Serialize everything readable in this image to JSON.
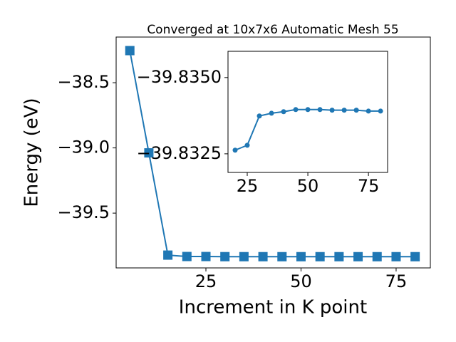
{
  "chart_data": [
    {
      "type": "line",
      "title": "Converged at 10x7x6 Automatic Mesh 55",
      "xlabel": "Increment in K point",
      "ylabel": "Energy (eV)",
      "x": [
        5,
        10,
        15,
        20,
        25,
        30,
        35,
        40,
        45,
        50,
        55,
        60,
        65,
        70,
        75,
        80
      ],
      "series": [
        {
          "color": "#1f77b4",
          "marker": "square",
          "values": [
            -38.254,
            -39.038,
            -39.822,
            -39.83262,
            -39.83278,
            -39.83374,
            -39.83383,
            -39.83388,
            -39.83395,
            -39.83395,
            -39.83395,
            -39.83393,
            -39.83393,
            -39.83393,
            -39.8339,
            -39.8339
          ]
        }
      ],
      "xlim": [
        1.4,
        84
      ],
      "ylim": [
        -39.92,
        -38.15
      ],
      "xticks": [
        25,
        50,
        75
      ],
      "yticks": [
        {
          "value": -38.5,
          "label": "−38.5"
        },
        {
          "value": -39.0,
          "label": "−39.0"
        },
        {
          "value": -39.5,
          "label": "−39.5"
        }
      ]
    },
    {
      "type": "line",
      "x": [
        20,
        25,
        30,
        35,
        40,
        45,
        50,
        55,
        60,
        65,
        70,
        75,
        80
      ],
      "series": [
        {
          "color": "#1f77b4",
          "marker": "circle",
          "values": [
            -39.83262,
            -39.83278,
            -39.83374,
            -39.83383,
            -39.83388,
            -39.83395,
            -39.83395,
            -39.83395,
            -39.83393,
            -39.83393,
            -39.83393,
            -39.8339,
            -39.8339
          ]
        }
      ],
      "xlim": [
        17.06,
        82.9
      ],
      "ylim": [
        -39.83189,
        -39.83586
      ],
      "xticks": [
        25,
        50,
        75
      ],
      "yticks": [
        {
          "value": -39.835,
          "label": "−39.8350"
        },
        {
          "value": -39.8325,
          "label": "−39.8325"
        }
      ]
    }
  ]
}
